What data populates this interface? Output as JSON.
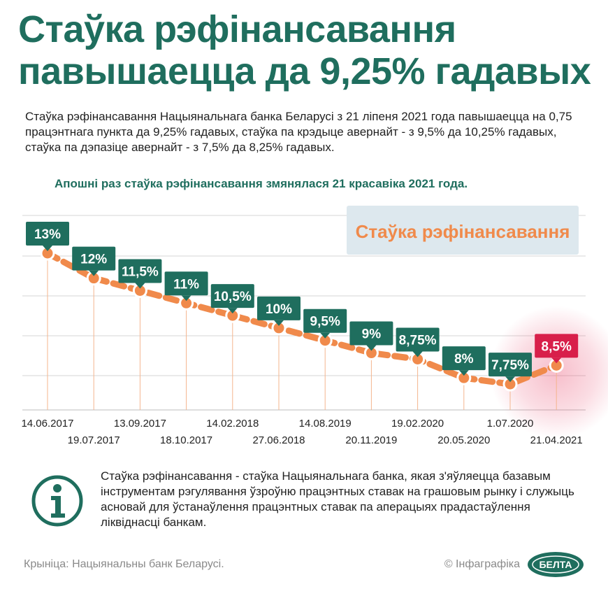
{
  "header": {
    "title_line1": "Стаўка рэфінансавання",
    "title_line2": "павышаецца да 9,25% гадавых"
  },
  "lead": "Стаўка рэфінансавання Нацыянальнага банка Беларусі з 21 ліпеня 2021 года павышаецца на 0,75 працэнтнага пункта да 9,25% гадавых, стаўка па крэдыце авернайт - з 9,5% да 10,25% гадавых, стаўка па дэпазіце авернайт - з 7,5% да 8,25% гадавых.",
  "note": "Апошні раз стаўка рэфінансавання змянялася 21 красавіка 2021 года.",
  "chart_data": {
    "type": "line",
    "title": "Стаўка рэфінансавання",
    "x": [
      "14.06.2017",
      "19.07.2017",
      "13.09.2017",
      "18.10.2017",
      "14.02.2018",
      "27.06.2018",
      "14.08.2019",
      "20.11.2019",
      "19.02.2020",
      "20.05.2020",
      "1.07.2020",
      "21.04.2021"
    ],
    "values": [
      13,
      12,
      11.5,
      11,
      10.5,
      10,
      9.5,
      9,
      8.75,
      8,
      7.75,
      8.5
    ],
    "labels": [
      "13%",
      "12%",
      "11,5%",
      "11%",
      "10,5%",
      "10%",
      "9,5%",
      "9%",
      "8,75%",
      "8%",
      "7,75%",
      "8,5%"
    ],
    "ylim": [
      7.5,
      13
    ],
    "grid": true,
    "highlight_last": true,
    "colors": {
      "line": "#f08a4b",
      "label_bg": "#1f6e5e",
      "label_highlight": "#d81f4a",
      "grid": "#d6d6d6"
    }
  },
  "info": {
    "text": "Стаўка рэфінансавання - стаўка Нацыянальнага банка, якая з'яўляецца базавым інструментам рэгулявання ўзроўню працэнтных ставак на грашовым рынку і служыць асновай для ўстанаўлення працэнтных ставак па аперацыях прадастаўлення ліквіднасці банкам.",
    "icon": "info-icon"
  },
  "footer": {
    "source": "Крыніца: Нацыянальны банк Беларусі.",
    "credit": "© Інфаграфіка",
    "logo_text": "БЕЛТА"
  }
}
